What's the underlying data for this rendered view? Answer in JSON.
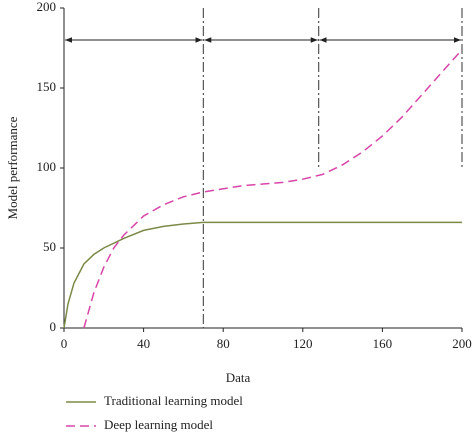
{
  "chart_data": {
    "type": "line",
    "xlabel": "Data",
    "ylabel": "Model performance",
    "xlim": [
      0,
      200
    ],
    "ylim": [
      0,
      200
    ],
    "xticks": [
      0,
      40,
      80,
      120,
      160,
      200
    ],
    "yticks": [
      0,
      50,
      100,
      150,
      200
    ],
    "series": [
      {
        "name": "Traditional learning model",
        "color": "#7b8a46",
        "dash": "solid",
        "x": [
          0,
          2,
          5,
          10,
          15,
          20,
          30,
          40,
          50,
          60,
          70,
          80,
          100,
          120,
          140,
          160,
          180,
          200
        ],
        "values": [
          0,
          15,
          28,
          40,
          46,
          50,
          56,
          61,
          63.5,
          65,
          66,
          66,
          66,
          66,
          66,
          66,
          66,
          66
        ]
      },
      {
        "name": "Deep learning model",
        "color": "#d845a8",
        "dash": "dashed",
        "x": [
          10,
          15,
          20,
          25,
          30,
          40,
          50,
          60,
          70,
          80,
          90,
          100,
          110,
          120,
          130,
          140,
          150,
          160,
          170,
          180,
          190,
          200
        ],
        "values": [
          0,
          22,
          38,
          50,
          58,
          70,
          77,
          82,
          85,
          87,
          89,
          90,
          91,
          93,
          96,
          102,
          110,
          120,
          132,
          146,
          160,
          174
        ]
      }
    ],
    "vlines": [
      70,
      128,
      200
    ],
    "vline_bottoms": [
      0,
      100,
      100
    ],
    "arrows_y": 180
  }
}
